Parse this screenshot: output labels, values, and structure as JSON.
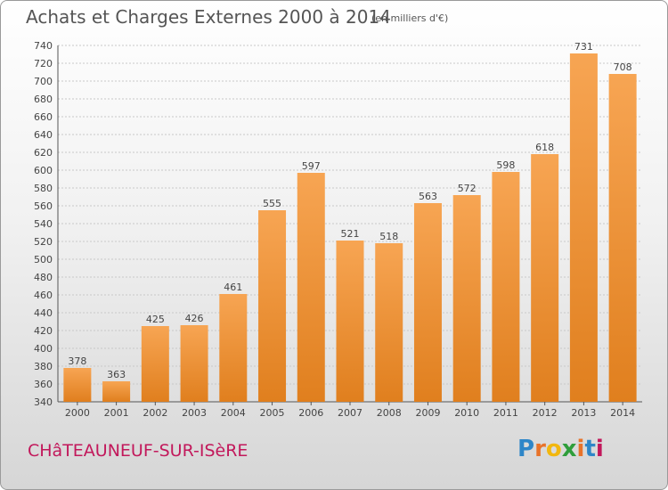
{
  "title": "Achats et Charges Externes 2000 à 2014",
  "unit": "(en milliers d'€)",
  "city": "CHâTEAUNEUF-SUR-ISèRE",
  "logo": {
    "letters": [
      "P",
      "r",
      "o",
      "x",
      "i",
      "t",
      "i"
    ],
    "colors": [
      "#2e86c8",
      "#e8732a",
      "#f2b70f",
      "#2f9e3b",
      "#e8732a",
      "#2e86c8",
      "#c2185b"
    ]
  },
  "colors": {
    "bar_light": "#f7a553",
    "bar_dark": "#e07f1e",
    "grid": "#c8c8c8"
  },
  "chart_data": {
    "type": "bar",
    "title": "Achats et Charges Externes 2000 à 2014",
    "subtitle": "(en milliers d'€)",
    "categories": [
      "2000",
      "2001",
      "2002",
      "2003",
      "2004",
      "2005",
      "2006",
      "2007",
      "2008",
      "2009",
      "2010",
      "2011",
      "2012",
      "2013",
      "2014"
    ],
    "values": [
      378,
      363,
      425,
      426,
      461,
      555,
      597,
      521,
      518,
      563,
      572,
      598,
      618,
      731,
      708
    ],
    "ylim": [
      340,
      740
    ],
    "yticks": [
      340,
      360,
      380,
      400,
      420,
      440,
      460,
      480,
      500,
      520,
      540,
      560,
      580,
      600,
      620,
      640,
      660,
      680,
      700,
      720,
      740
    ],
    "grid": true,
    "data_labels": true
  }
}
